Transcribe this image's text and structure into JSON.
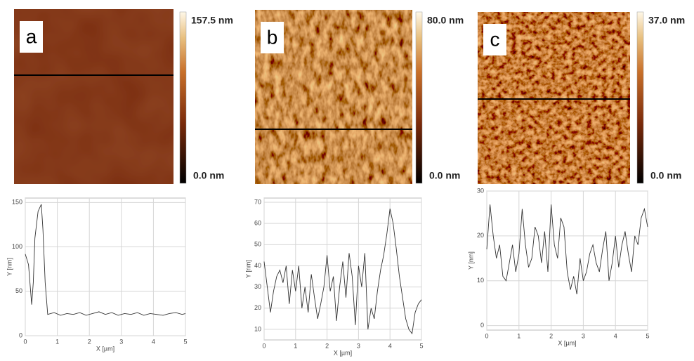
{
  "images": [
    {
      "label": "a",
      "max_label": "157.5 nm",
      "min_label": "0.0 nm"
    },
    {
      "label": "b",
      "max_label": "80.0 nm",
      "min_label": "0.0 nm"
    },
    {
      "label": "c",
      "max_label": "37.0 nm",
      "min_label": "0.0 nm"
    }
  ],
  "chart_data": [
    {
      "type": "line",
      "xlabel": "X [µm]",
      "ylabel": "Y [nm]",
      "color": "#333333",
      "grid": true,
      "xlim": [
        0,
        5
      ],
      "ylim": [
        0,
        155
      ],
      "xticks": [
        0,
        1,
        2,
        3,
        4,
        5
      ],
      "yticks": [
        0,
        50,
        100,
        150
      ],
      "x": [
        0,
        0.1,
        0.2,
        0.25,
        0.3,
        0.4,
        0.5,
        0.55,
        0.62,
        0.7,
        0.9,
        1.1,
        1.3,
        1.5,
        1.7,
        1.9,
        2.1,
        2.3,
        2.5,
        2.7,
        2.9,
        3.1,
        3.3,
        3.5,
        3.7,
        3.9,
        4.1,
        4.3,
        4.5,
        4.7,
        4.9,
        5
      ],
      "values": [
        92,
        80,
        35,
        60,
        110,
        140,
        148,
        120,
        60,
        24,
        26,
        23,
        25,
        24,
        26,
        23,
        25,
        27,
        24,
        26,
        23,
        25,
        24,
        26,
        23,
        25,
        24,
        23,
        25,
        26,
        24,
        25
      ]
    },
    {
      "type": "line",
      "xlabel": "X [µm]",
      "ylabel": "Y [nm]",
      "color": "#333333",
      "grid": true,
      "xlim": [
        0,
        5
      ],
      "ylim": [
        5,
        72
      ],
      "xticks": [
        0,
        1,
        2,
        3,
        4,
        5
      ],
      "yticks": [
        10,
        20,
        30,
        40,
        50,
        60,
        70
      ],
      "x": [
        0,
        0.1,
        0.2,
        0.3,
        0.4,
        0.5,
        0.6,
        0.7,
        0.8,
        0.9,
        1.0,
        1.1,
        1.2,
        1.3,
        1.4,
        1.5,
        1.6,
        1.7,
        1.8,
        1.9,
        2.0,
        2.1,
        2.2,
        2.3,
        2.4,
        2.5,
        2.6,
        2.7,
        2.8,
        2.9,
        3.0,
        3.1,
        3.2,
        3.3,
        3.4,
        3.5,
        3.6,
        3.7,
        3.8,
        3.9,
        4.0,
        4.1,
        4.2,
        4.3,
        4.4,
        4.5,
        4.6,
        4.7,
        4.8,
        4.9,
        5.0
      ],
      "values": [
        42,
        30,
        18,
        28,
        35,
        38,
        32,
        40,
        22,
        38,
        28,
        40,
        20,
        30,
        18,
        36,
        25,
        15,
        22,
        30,
        45,
        28,
        35,
        14,
        30,
        42,
        25,
        46,
        35,
        12,
        40,
        30,
        46,
        10,
        20,
        15,
        28,
        38,
        45,
        55,
        67,
        60,
        48,
        35,
        25,
        15,
        10,
        8,
        18,
        22,
        24
      ]
    },
    {
      "type": "line",
      "xlabel": "X [µm]",
      "ylabel": "Y [nm]",
      "color": "#333333",
      "grid": true,
      "xlim": [
        0,
        5
      ],
      "ylim": [
        -1,
        30
      ],
      "xticks": [
        0,
        1,
        2,
        3,
        4,
        5
      ],
      "yticks": [
        0,
        10,
        20,
        30
      ],
      "x": [
        0,
        0.1,
        0.2,
        0.3,
        0.4,
        0.5,
        0.6,
        0.7,
        0.8,
        0.9,
        1.0,
        1.1,
        1.2,
        1.3,
        1.4,
        1.5,
        1.6,
        1.7,
        1.8,
        1.9,
        2.0,
        2.1,
        2.2,
        2.3,
        2.4,
        2.5,
        2.6,
        2.7,
        2.8,
        2.9,
        3.0,
        3.1,
        3.2,
        3.3,
        3.4,
        3.5,
        3.6,
        3.7,
        3.8,
        3.9,
        4.0,
        4.1,
        4.2,
        4.3,
        4.4,
        4.5,
        4.6,
        4.7,
        4.8,
        4.9,
        5.0
      ],
      "values": [
        17,
        27,
        20,
        15,
        18,
        11,
        10,
        14,
        18,
        12,
        16,
        26,
        18,
        13,
        15,
        22,
        20,
        14,
        21,
        12,
        27,
        18,
        15,
        24,
        22,
        12,
        8,
        11,
        7,
        15,
        10,
        12,
        16,
        18,
        14,
        12,
        17,
        21,
        10,
        14,
        20,
        13,
        18,
        21,
        16,
        12,
        20,
        18,
        24,
        26,
        22
      ]
    }
  ]
}
